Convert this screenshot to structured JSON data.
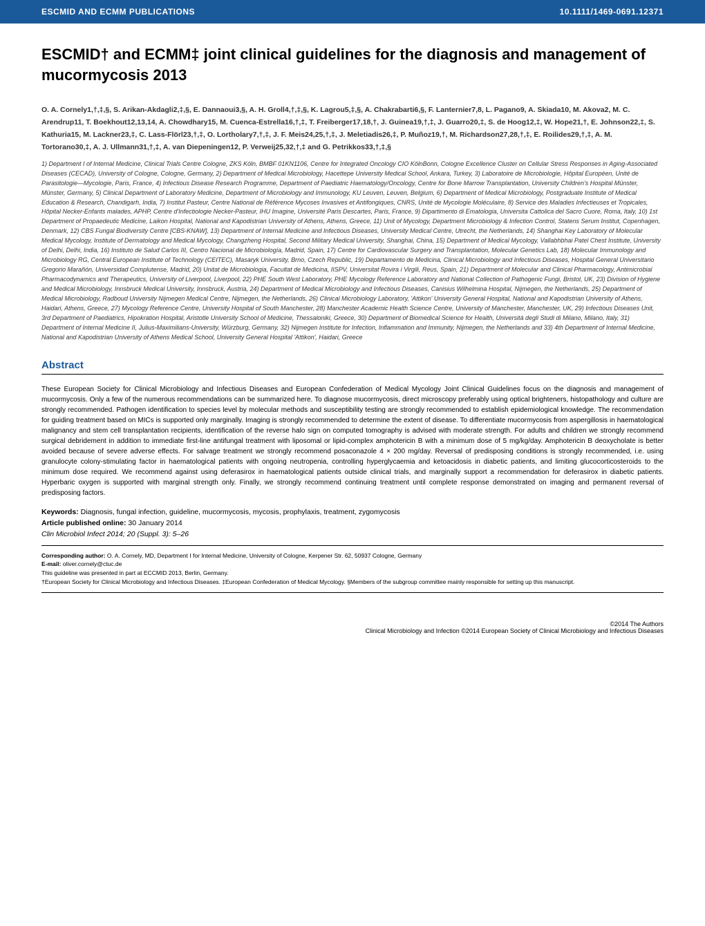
{
  "header": {
    "left": "ESCMID AND ECMM PUBLICATIONS",
    "right": "10.1111/1469-0691.12371"
  },
  "title": "ESCMID† and ECMM‡ joint clinical guidelines for the diagnosis and management of mucormycosis 2013",
  "authors": "O. A. Cornely1,†,‡,§, S. Arikan-Akdagli2,‡,§, E. Dannaoui3,§, A. H. Groll4,†,‡,§, K. Lagrou5,‡,§, A. Chakrabarti6,§, F. Lanternier7,8, L. Pagano9, A. Skiada10, M. Akova2, M. C. Arendrup11, T. Boekhout12,13,14, A. Chowdhary15, M. Cuenca-Estrella16,†,‡, T. Freiberger17,18,†, J. Guinea19,†,‡, J. Guarro20,‡, S. de Hoog12,‡, W. Hope21,†, E. Johnson22,‡, S. Kathuria15, M. Lackner23,‡, C. Lass-Flörl23,†,‡, O. Lortholary7,†,‡, J. F. Meis24,25,†,‡, J. Meletiadis26,‡, P. Muñoz19,†, M. Richardson27,28,†,‡, E. Roilides29,†,‡, A. M. Tortorano30,‡, A. J. Ullmann31,†,‡, A. van Diepeningen12, P. Verweij25,32,†,‡ and G. Petrikkos33,†,‡,§",
  "affiliations": "1) Department I of Internal Medicine, Clinical Trials Centre Cologne, ZKS Köln, BMBF 01KN1106, Centre for Integrated Oncology CIO KölnBonn, Cologne Excellence Cluster on Cellular Stress Responses in Aging-Associated Diseases (CECAD), University of Cologne, Cologne, Germany, 2) Department of Medical Microbiology, Hacettepe University Medical School, Ankara, Turkey, 3) Laboratoire de Microbiologie, Hôpital Européen, Unité de Parasitologie—Mycologie, Paris, France, 4) Infectious Disease Research Programme, Department of Paediatric Haematology/Oncology, Centre for Bone Marrow Transplantation, University Children's Hospital Münster, Münster, Germany, 5) Clinical Department of Laboratory Medicine, Department of Microbiology and Immunology, KU Leuven, Leuven, Belgium, 6) Department of Medical Microbiology, Postgraduate Institute of Medical Education & Research, Chandigarh, India, 7) Institut Pasteur, Centre National de Référence Mycoses Invasives et Antifongiques, CNRS, Unité de Mycologie Moléculaire, 8) Service des Maladies Infectieuses et Tropicales, Hôpital Necker-Enfants malades, APHP, Centre d'Infectiologie Necker-Pasteur, IHU Imagine, Université Paris Descartes, Paris, France, 9) Dipartimento di Ematologia, Universita Cattolica del Sacro Cuore, Roma, Italy, 10) 1st Department of Propaedeutic Medicine, Laikon Hospital, National and Kapodistrian University of Athens, Athens, Greece, 11) Unit of Mycology, Department Microbiology & Infection Control, Statens Serum Institut, Copenhagen, Denmark, 12) CBS Fungal Biodiversity Centre [CBS-KNAW], 13) Department of Internal Medicine and Infectious Diseases, University Medical Centre, Utrecht, the Netherlands, 14) Shanghai Key Laboratory of Molecular Medical Mycology, Institute of Dermatology and Medical Mycology, Changzheng Hospital, Second Military Medical University, Shanghai, China, 15) Department of Medical Mycology, Vallabhbhai Patel Chest Institute, University of Delhi, Delhi, India, 16) Instituto de Salud Carlos III, Centro Nacional de Microbiología, Madrid, Spain, 17) Centre for Cardiovascular Surgery and Transplantation, Molecular Genetics Lab, 18) Molecular Immunology and Microbiology RG, Central European Institute of Technology (CEITEC), Masaryk University, Brno, Czech Republic, 19) Departamento de Medicina, Clinical Microbiology and Infectious Diseases, Hospital General Universitario Gregorio Marañón, Universidad Complutense, Madrid, 20) Unitat de Microbiologia, Facultat de Medicina, IISPV, Universitat Rovira i Virgili, Reus, Spain, 21) Department of Molecular and Clinical Pharmacology, Antimicrobial Pharmacodynamics and Therapeutics, University of Liverpool, Liverpool, 22) PHE South West Laboratory, PHE Mycology Reference Laboratory and National Collection of Pathogenic Fungi, Bristol, UK, 23) Division of Hygiene and Medical Microbiology, Innsbruck Medical University, Innsbruck, Austria, 24) Department of Medical Microbiology and Infectious Diseases, Canisius Wilhelmina Hospital, Nijmegen, the Netherlands, 25) Department of Medical Microbiology, Radboud University Nijmegen Medical Centre, Nijmegen, the Netherlands, 26) Clinical Microbiology Laboratory, 'Attikon' University General Hospital, National and Kapodistrian University of Athens, Haidari, Athens, Greece, 27) Mycology Reference Centre, University Hospital of South Manchester, 28) Manchester Academic Health Science Centre, University of Manchester, Manchester, UK, 29) Infectious Diseases Unit, 3rd Department of Paediatrics, Hipokration Hospital, Aristotle University School of Medicine, Thessaloniki, Greece, 30) Department of Biomedical Science for Health, Università degli Studi di Milano, Milano, Italy, 31) Department of Internal Medicine II, Julius-Maximilians-University, Würzburg, Germany, 32) Nijmegen Institute for Infection, Inflammation and Immunity, Nijmegen, the Netherlands and 33) 4th Department of Internal Medicine, National and Kapodistrian University of Athens Medical School, University General Hospital 'Attikon', Haidari, Greece",
  "abstract": {
    "heading": "Abstract",
    "body": "These European Society for Clinical Microbiology and Infectious Diseases and European Confederation of Medical Mycology Joint Clinical Guidelines focus on the diagnosis and management of mucormycosis. Only a few of the numerous recommendations can be summarized here. To diagnose mucormycosis, direct microscopy preferably using optical brighteners, histopathology and culture are strongly recommended. Pathogen identification to species level by molecular methods and susceptibility testing are strongly recommended to establish epidemiological knowledge. The recommendation for guiding treatment based on MICs is supported only marginally. Imaging is strongly recommended to determine the extent of disease. To differentiate mucormycosis from aspergillosis in haematological malignancy and stem cell transplantation recipients, identification of the reverse halo sign on computed tomography is advised with moderate strength. For adults and children we strongly recommend surgical debridement in addition to immediate first-line antifungal treatment with liposomal or lipid-complex amphotericin B with a minimum dose of 5 mg/kg/day. Amphotericin B deoxycholate is better avoided because of severe adverse effects. For salvage treatment we strongly recommend posaconazole 4 × 200 mg/day. Reversal of predisposing conditions is strongly recommended, i.e. using granulocyte colony-stimulating factor in haematological patients with ongoing neutropenia, controlling hyperglycaemia and ketoacidosis in diabetic patients, and limiting glucocorticosteroids to the minimum dose required. We recommend against using deferasirox in haematological patients outside clinical trials, and marginally support a recommendation for deferasirox in diabetic patients. Hyperbaric oxygen is supported with marginal strength only. Finally, we strongly recommend continuing treatment until complete response demonstrated on imaging and permanent reversal of predisposing factors."
  },
  "keywords": {
    "label": "Keywords:",
    "text": " Diagnosis, fungal infection, guideline, mucormycosis, mycosis, prophylaxis, treatment, zygomycosis"
  },
  "published": {
    "label": "Article published online:",
    "text": " 30 January 2014"
  },
  "citation": "Clin Microbiol Infect 2014; 20 (Suppl. 3): 5–26",
  "corresponding": {
    "label": "Corresponding author:",
    "text": " O. A. Cornely, MD, Department I for Internal Medicine, University of Cologne, Kerpener Str. 62, 50937 Cologne, Germany",
    "email_label": "E-mail:",
    "email": " oliver.cornely@ctuc.de",
    "note1": "This guideline was presented in part at ECCMID 2013, Berlin, Germany.",
    "note2": "†European Society for Clinical Microbiology and Infectious Diseases. ‡European Confederation of Medical Mycology. §Members of the subgroup committee mainly responsible for setting up this manuscript."
  },
  "footer": {
    "line1": "©2014 The Authors",
    "line2": "Clinical Microbiology and Infection ©2014 European Society of Clinical Microbiology and Infectious Diseases"
  }
}
